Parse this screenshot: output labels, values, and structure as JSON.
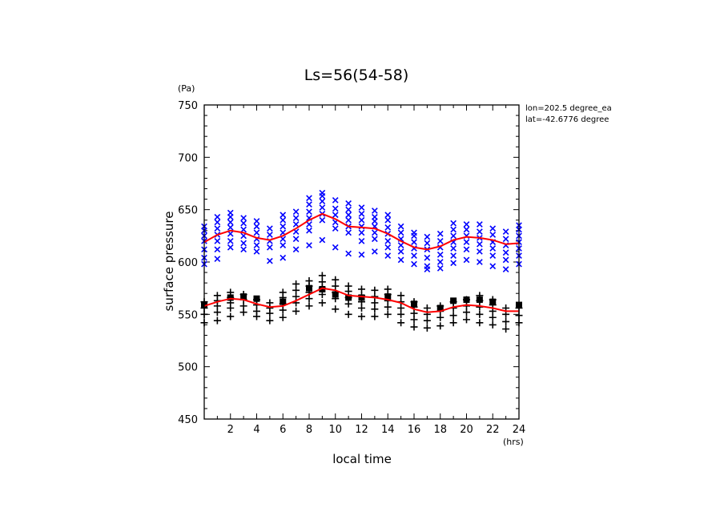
{
  "chart_data": {
    "type": "scatter",
    "title": "Ls=56(54-58)",
    "xlabel": "local time",
    "ylabel": "surface pressure",
    "x_unit": "(hrs)",
    "y_unit": "(Pa)",
    "xlim": [
      0,
      24
    ],
    "ylim": [
      450,
      750
    ],
    "x_ticks": [
      2,
      4,
      6,
      8,
      10,
      12,
      14,
      16,
      18,
      20,
      22,
      24
    ],
    "y_ticks": [
      450,
      500,
      550,
      600,
      650,
      700,
      750
    ],
    "annotations": [
      "lon=202.5 degree_ea",
      "lat=-42.6776 degree"
    ],
    "grid": false,
    "series": [
      {
        "marker": "x",
        "color": "#0000ff",
        "points": [
          [
            0,
            598
          ],
          [
            0,
            604
          ],
          [
            0,
            612
          ],
          [
            0,
            620
          ],
          [
            0,
            625
          ],
          [
            0,
            630
          ],
          [
            0,
            634
          ],
          [
            1,
            603
          ],
          [
            1,
            612
          ],
          [
            1,
            620
          ],
          [
            1,
            626
          ],
          [
            1,
            632
          ],
          [
            1,
            638
          ],
          [
            1,
            643
          ],
          [
            2,
            614
          ],
          [
            2,
            620
          ],
          [
            2,
            627
          ],
          [
            2,
            633
          ],
          [
            2,
            638
          ],
          [
            2,
            643
          ],
          [
            2,
            647
          ],
          [
            3,
            612
          ],
          [
            3,
            618
          ],
          [
            3,
            625
          ],
          [
            3,
            631
          ],
          [
            3,
            637
          ],
          [
            3,
            642
          ],
          [
            4,
            610
          ],
          [
            4,
            616
          ],
          [
            4,
            622
          ],
          [
            4,
            628
          ],
          [
            4,
            634
          ],
          [
            4,
            639
          ],
          [
            5,
            601
          ],
          [
            5,
            614
          ],
          [
            5,
            620
          ],
          [
            5,
            626
          ],
          [
            5,
            632
          ],
          [
            6,
            604
          ],
          [
            6,
            616
          ],
          [
            6,
            622
          ],
          [
            6,
            628
          ],
          [
            6,
            634
          ],
          [
            6,
            640
          ],
          [
            6,
            645
          ],
          [
            7,
            612
          ],
          [
            7,
            622
          ],
          [
            7,
            629
          ],
          [
            7,
            636
          ],
          [
            7,
            642
          ],
          [
            7,
            648
          ],
          [
            8,
            616
          ],
          [
            8,
            630
          ],
          [
            8,
            636
          ],
          [
            8,
            642
          ],
          [
            8,
            648
          ],
          [
            8,
            655
          ],
          [
            8,
            661
          ],
          [
            9,
            621
          ],
          [
            9,
            640
          ],
          [
            9,
            646
          ],
          [
            9,
            652
          ],
          [
            9,
            658
          ],
          [
            9,
            663
          ],
          [
            9,
            666
          ],
          [
            10,
            614
          ],
          [
            10,
            632
          ],
          [
            10,
            638
          ],
          [
            10,
            645
          ],
          [
            10,
            651
          ],
          [
            10,
            659
          ],
          [
            11,
            608
          ],
          [
            11,
            628
          ],
          [
            11,
            634
          ],
          [
            11,
            640
          ],
          [
            11,
            645
          ],
          [
            11,
            650
          ],
          [
            11,
            656
          ],
          [
            12,
            607
          ],
          [
            12,
            620
          ],
          [
            12,
            628
          ],
          [
            12,
            634
          ],
          [
            12,
            640
          ],
          [
            12,
            646
          ],
          [
            12,
            652
          ],
          [
            13,
            610
          ],
          [
            13,
            622
          ],
          [
            13,
            628
          ],
          [
            13,
            634
          ],
          [
            13,
            639
          ],
          [
            13,
            643
          ],
          [
            13,
            649
          ],
          [
            14,
            606
          ],
          [
            14,
            614
          ],
          [
            14,
            620
          ],
          [
            14,
            627
          ],
          [
            14,
            633
          ],
          [
            14,
            640
          ],
          [
            14,
            645
          ],
          [
            15,
            602
          ],
          [
            15,
            610
          ],
          [
            15,
            616
          ],
          [
            15,
            622
          ],
          [
            15,
            628
          ],
          [
            15,
            634
          ],
          [
            16,
            598
          ],
          [
            16,
            606
          ],
          [
            16,
            613
          ],
          [
            16,
            619
          ],
          [
            16,
            625
          ],
          [
            16,
            628
          ],
          [
            17,
            593
          ],
          [
            17,
            596
          ],
          [
            17,
            604
          ],
          [
            17,
            612
          ],
          [
            17,
            618
          ],
          [
            17,
            624
          ],
          [
            18,
            594
          ],
          [
            18,
            600
          ],
          [
            18,
            607
          ],
          [
            18,
            614
          ],
          [
            18,
            620
          ],
          [
            18,
            627
          ],
          [
            19,
            599
          ],
          [
            19,
            606
          ],
          [
            19,
            613
          ],
          [
            19,
            619
          ],
          [
            19,
            625
          ],
          [
            19,
            631
          ],
          [
            19,
            637
          ],
          [
            20,
            602
          ],
          [
            20,
            612
          ],
          [
            20,
            619
          ],
          [
            20,
            625
          ],
          [
            20,
            631
          ],
          [
            20,
            636
          ],
          [
            21,
            600
          ],
          [
            21,
            610
          ],
          [
            21,
            617
          ],
          [
            21,
            623
          ],
          [
            21,
            629
          ],
          [
            21,
            636
          ],
          [
            22,
            596
          ],
          [
            22,
            606
          ],
          [
            22,
            613
          ],
          [
            22,
            619
          ],
          [
            22,
            626
          ],
          [
            22,
            632
          ],
          [
            23,
            593
          ],
          [
            23,
            602
          ],
          [
            23,
            609
          ],
          [
            23,
            616
          ],
          [
            23,
            622
          ],
          [
            23,
            629
          ],
          [
            24,
            598
          ],
          [
            24,
            606
          ],
          [
            24,
            613
          ],
          [
            24,
            619
          ],
          [
            24,
            625
          ],
          [
            24,
            631
          ],
          [
            24,
            635
          ]
        ]
      },
      {
        "marker": "+",
        "color": "#000000",
        "points": [
          [
            0,
            542
          ],
          [
            0,
            550
          ],
          [
            0,
            556
          ],
          [
            0,
            562
          ],
          [
            1,
            544
          ],
          [
            1,
            552
          ],
          [
            1,
            558
          ],
          [
            1,
            563
          ],
          [
            1,
            568
          ],
          [
            2,
            548
          ],
          [
            2,
            556
          ],
          [
            2,
            561
          ],
          [
            2,
            566
          ],
          [
            2,
            571
          ],
          [
            3,
            552
          ],
          [
            3,
            558
          ],
          [
            3,
            564
          ],
          [
            3,
            569
          ],
          [
            4,
            548
          ],
          [
            4,
            553
          ],
          [
            4,
            559
          ],
          [
            4,
            564
          ],
          [
            5,
            544
          ],
          [
            5,
            551
          ],
          [
            5,
            556
          ],
          [
            5,
            561
          ],
          [
            6,
            547
          ],
          [
            6,
            554
          ],
          [
            6,
            560
          ],
          [
            6,
            566
          ],
          [
            6,
            571
          ],
          [
            7,
            553
          ],
          [
            7,
            561
          ],
          [
            7,
            567
          ],
          [
            7,
            573
          ],
          [
            7,
            579
          ],
          [
            8,
            558
          ],
          [
            8,
            565
          ],
          [
            8,
            571
          ],
          [
            8,
            577
          ],
          [
            8,
            582
          ],
          [
            9,
            561
          ],
          [
            9,
            569
          ],
          [
            9,
            575
          ],
          [
            9,
            581
          ],
          [
            9,
            587
          ],
          [
            10,
            555
          ],
          [
            10,
            565
          ],
          [
            10,
            571
          ],
          [
            10,
            577
          ],
          [
            10,
            583
          ],
          [
            11,
            550
          ],
          [
            11,
            560
          ],
          [
            11,
            566
          ],
          [
            11,
            572
          ],
          [
            11,
            577
          ],
          [
            12,
            548
          ],
          [
            12,
            556
          ],
          [
            12,
            562
          ],
          [
            12,
            568
          ],
          [
            12,
            574
          ],
          [
            13,
            548
          ],
          [
            13,
            555
          ],
          [
            13,
            561
          ],
          [
            13,
            567
          ],
          [
            13,
            573
          ],
          [
            14,
            550
          ],
          [
            14,
            557
          ],
          [
            14,
            563
          ],
          [
            14,
            569
          ],
          [
            14,
            574
          ],
          [
            15,
            542
          ],
          [
            15,
            550
          ],
          [
            15,
            556
          ],
          [
            15,
            562
          ],
          [
            15,
            568
          ],
          [
            16,
            538
          ],
          [
            16,
            545
          ],
          [
            16,
            551
          ],
          [
            16,
            557
          ],
          [
            16,
            562
          ],
          [
            17,
            537
          ],
          [
            17,
            544
          ],
          [
            17,
            550
          ],
          [
            17,
            556
          ],
          [
            18,
            539
          ],
          [
            18,
            547
          ],
          [
            18,
            553
          ],
          [
            18,
            558
          ],
          [
            19,
            542
          ],
          [
            19,
            549
          ],
          [
            19,
            556
          ],
          [
            19,
            562
          ],
          [
            20,
            545
          ],
          [
            20,
            552
          ],
          [
            20,
            558
          ],
          [
            20,
            564
          ],
          [
            21,
            542
          ],
          [
            21,
            550
          ],
          [
            21,
            557
          ],
          [
            21,
            563
          ],
          [
            21,
            568
          ],
          [
            22,
            540
          ],
          [
            22,
            547
          ],
          [
            22,
            553
          ],
          [
            22,
            559
          ],
          [
            22,
            564
          ],
          [
            23,
            536
          ],
          [
            23,
            543
          ],
          [
            23,
            550
          ],
          [
            23,
            556
          ],
          [
            24,
            542
          ],
          [
            24,
            549
          ],
          [
            24,
            556
          ]
        ]
      },
      {
        "marker": "square",
        "color": "#000000",
        "points": [
          [
            0,
            559
          ],
          [
            2,
            566
          ],
          [
            3,
            567
          ],
          [
            4,
            565
          ],
          [
            6,
            562
          ],
          [
            8,
            575
          ],
          [
            9,
            574
          ],
          [
            10,
            569
          ],
          [
            11,
            566
          ],
          [
            12,
            566
          ],
          [
            14,
            567
          ],
          [
            16,
            560
          ],
          [
            18,
            556
          ],
          [
            19,
            563
          ],
          [
            20,
            564
          ],
          [
            21,
            564
          ],
          [
            22,
            562
          ],
          [
            24,
            559
          ]
        ]
      },
      {
        "type": "line",
        "color": "#ff0000",
        "x": [
          0,
          1,
          2,
          3,
          4,
          5,
          6,
          7,
          8,
          9,
          10,
          11,
          12,
          13,
          14,
          15,
          16,
          17,
          18,
          19,
          20,
          21,
          22,
          23,
          24
        ],
        "values": [
          619,
          626,
          630,
          628,
          623,
          621,
          625,
          632,
          640,
          646,
          641,
          634,
          633,
          632,
          627,
          620,
          614,
          612,
          615,
          621,
          624,
          623,
          621,
          617,
          618
        ]
      },
      {
        "type": "line",
        "color": "#ff0000",
        "x": [
          0,
          1,
          2,
          3,
          4,
          5,
          6,
          7,
          8,
          9,
          10,
          11,
          12,
          13,
          14,
          15,
          16,
          17,
          18,
          19,
          20,
          21,
          22,
          23,
          24
        ],
        "values": [
          558,
          562,
          565,
          564,
          560,
          557,
          558,
          563,
          569,
          575,
          573,
          568,
          567,
          566,
          564,
          561,
          555,
          552,
          553,
          557,
          559,
          558,
          556,
          553,
          553
        ]
      }
    ]
  }
}
